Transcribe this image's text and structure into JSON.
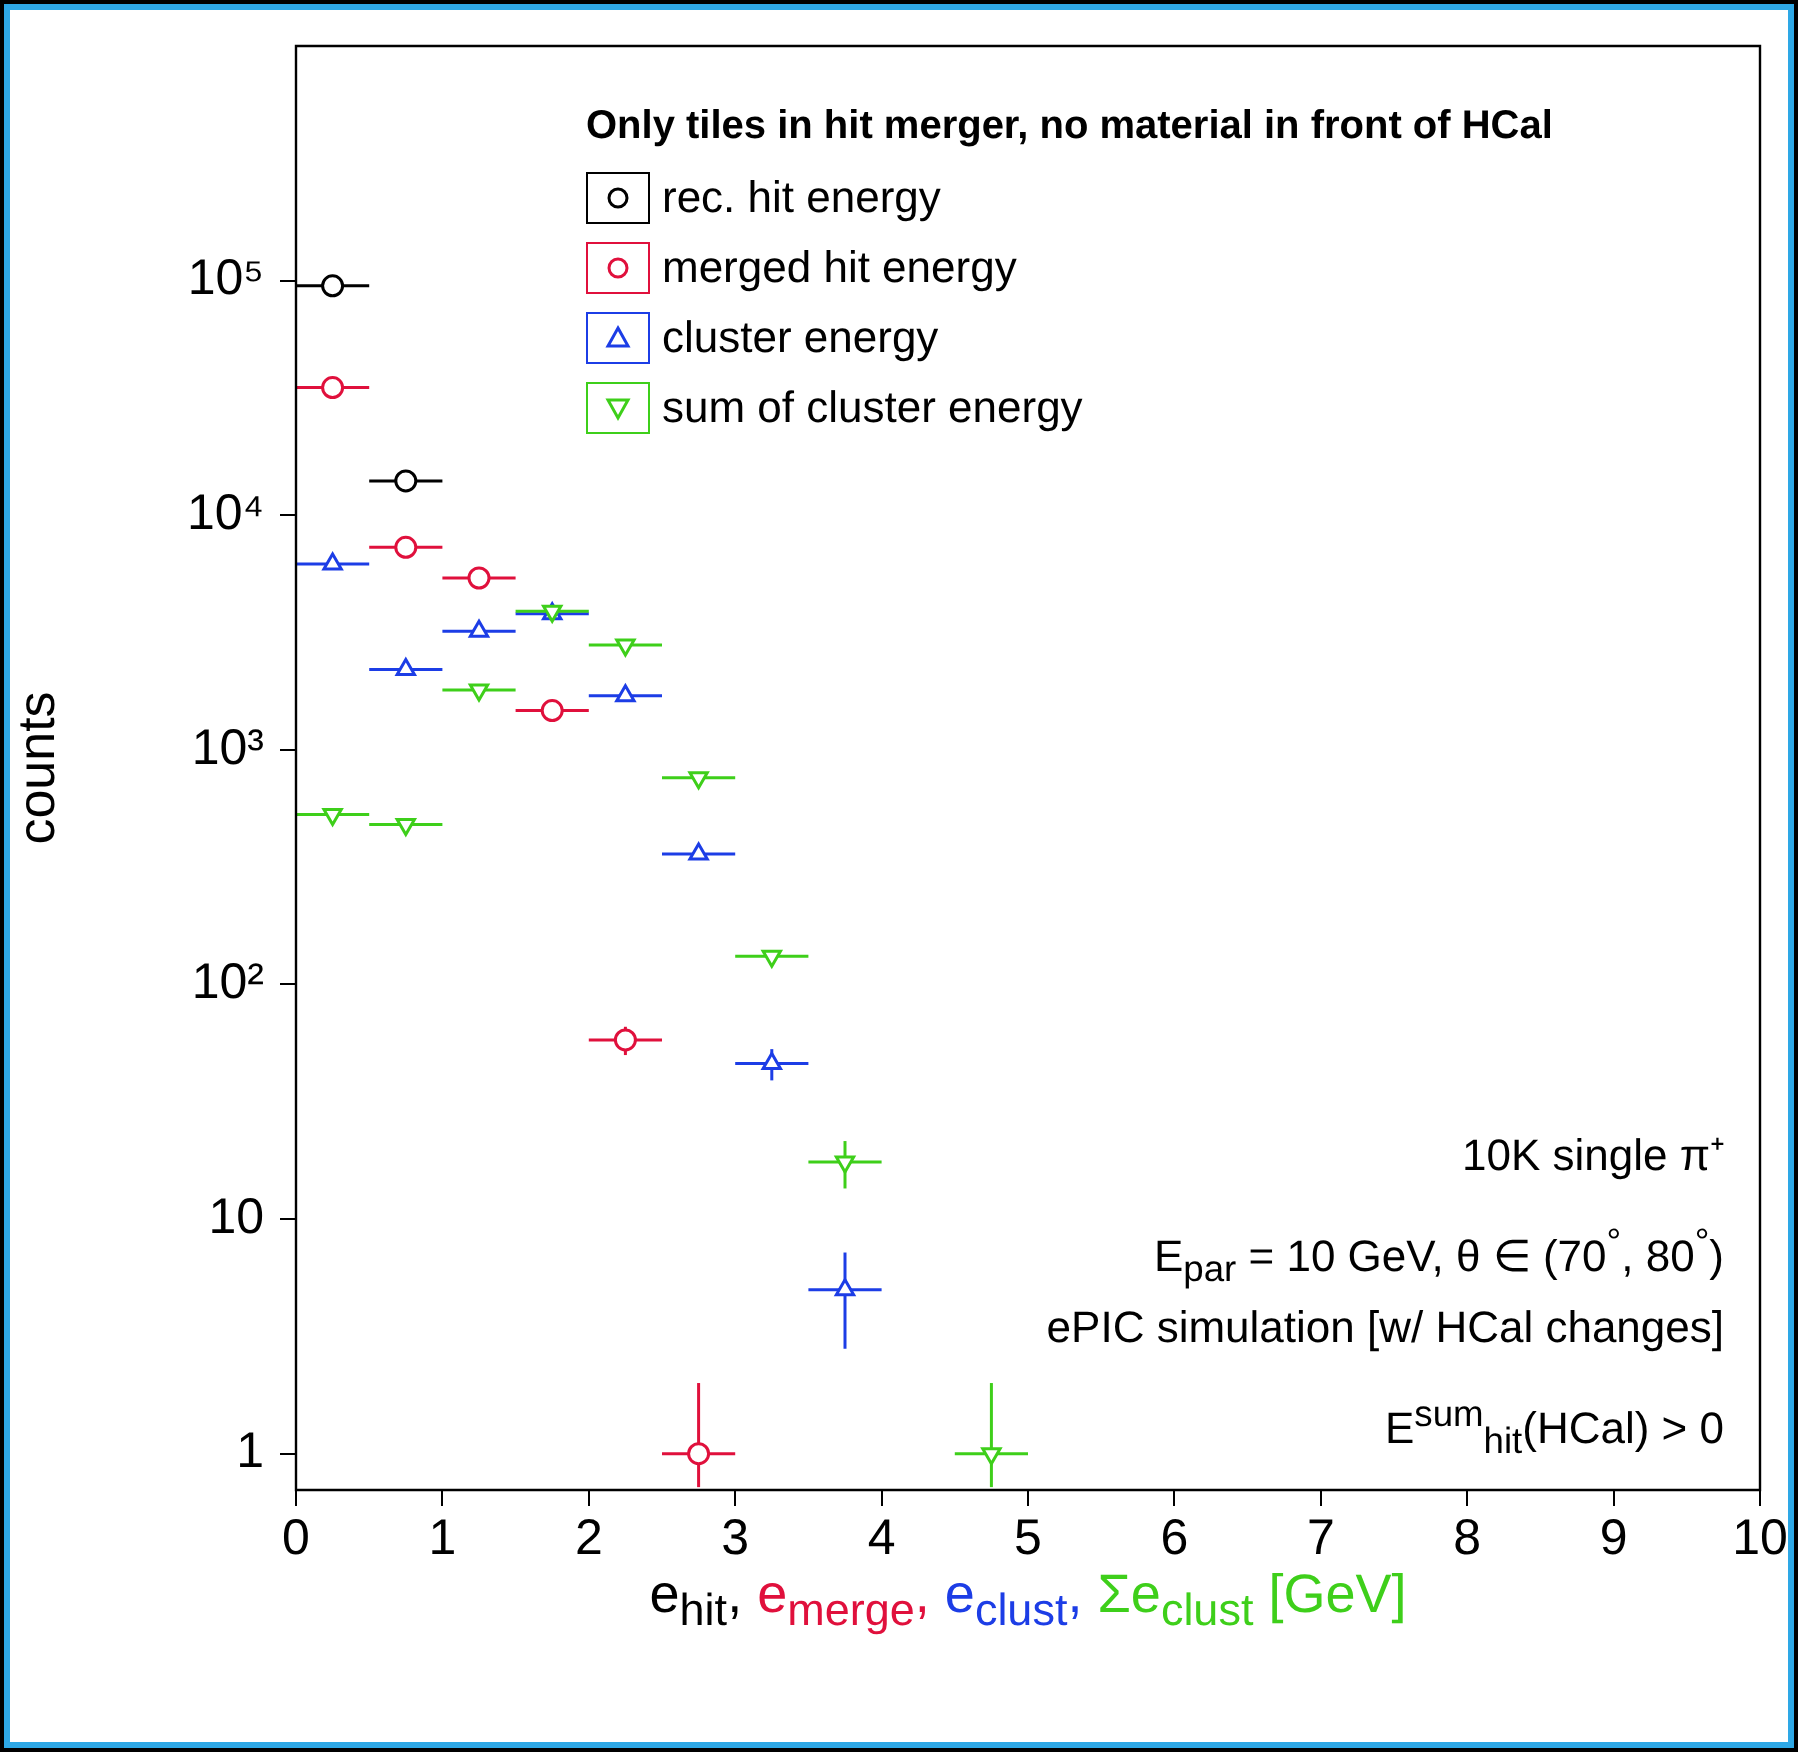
{
  "chart_data": {
    "type": "scatter",
    "xlabel": "e$_{hit}$, e$_{merge}$, e$_{clust}$, Σe$_{clust}$ [GeV]",
    "ylabel": "counts",
    "legend_title": "Only tiles in hit merger, no material in front of HCal",
    "legend": "top",
    "log": "y",
    "grid": false,
    "xlim": [
      0,
      10
    ],
    "xticks": [
      0,
      1,
      2,
      3,
      4,
      5,
      6,
      7,
      8,
      9,
      10
    ],
    "ylim": [
      0.72,
      1000000
    ],
    "yticks": [
      1,
      10,
      {
        "value": 100,
        "label": "10²"
      },
      {
        "value": 1000,
        "label": "10³"
      },
      {
        "value": 10000,
        "label": "10⁴"
      },
      {
        "value": 100000,
        "label": "10⁵"
      }
    ],
    "series": [
      {
        "name": "rec. hit energy",
        "color": "#000000",
        "marker": "circle",
        "x": [
          0.25,
          0.75
        ],
        "values": [
          95000,
          14000
        ],
        "xerrors": [
          0.25,
          0.25
        ]
      },
      {
        "name": "merged hit energy",
        "color": "#e0103c",
        "marker": "circle",
        "x": [
          0.25,
          0.75,
          1.25,
          1.75,
          2.25,
          2.75
        ],
        "values": [
          35000,
          7300,
          5400,
          1470,
          58,
          1
        ],
        "xerrors": [
          0.25,
          0.25,
          0.25,
          0.25,
          0.25,
          0.25
        ],
        "errors": [
          null,
          null,
          null,
          null,
          8,
          [
            0.72,
            2
          ]
        ]
      },
      {
        "name": "cluster energy",
        "color": "#1c3de6",
        "marker": "triangle",
        "x": [
          0.25,
          0.75,
          1.25,
          1.75,
          2.25,
          2.75,
          3.25,
          3.75
        ],
        "values": [
          6200,
          2200,
          3200,
          3800,
          1700,
          360,
          46,
          5
        ],
        "xerrors": [
          0.25,
          0.25,
          0.25,
          0.25,
          0.25,
          0.25,
          0.25,
          0.25
        ],
        "errors": [
          null,
          null,
          null,
          null,
          null,
          null,
          7,
          2.2
        ]
      },
      {
        "name": "sum of cluster energy",
        "color": "#3ecf1a",
        "marker": "triangle-down",
        "x": [
          0.25,
          0.75,
          1.25,
          1.75,
          2.25,
          2.75,
          3.25,
          3.75,
          4.75
        ],
        "values": [
          530,
          480,
          1800,
          3900,
          2800,
          760,
          132,
          17.5,
          1
        ],
        "xerrors": [
          0.25,
          0.25,
          0.25,
          0.25,
          0.25,
          0.25,
          0.25,
          0.25,
          0.25
        ],
        "errors": [
          null,
          null,
          null,
          null,
          null,
          null,
          null,
          4,
          [
            0.72,
            2
          ]
        ]
      }
    ],
    "annotations": [
      "10K single π⁺",
      "E$_{par}$ = 10 GeV, θ ∈ (70$^{°}$, 80$^{°}$)",
      "ePIC simulation [w/ HCal changes]",
      "E$^{sum}$$_{hit}$(HCal) > 0"
    ]
  }
}
